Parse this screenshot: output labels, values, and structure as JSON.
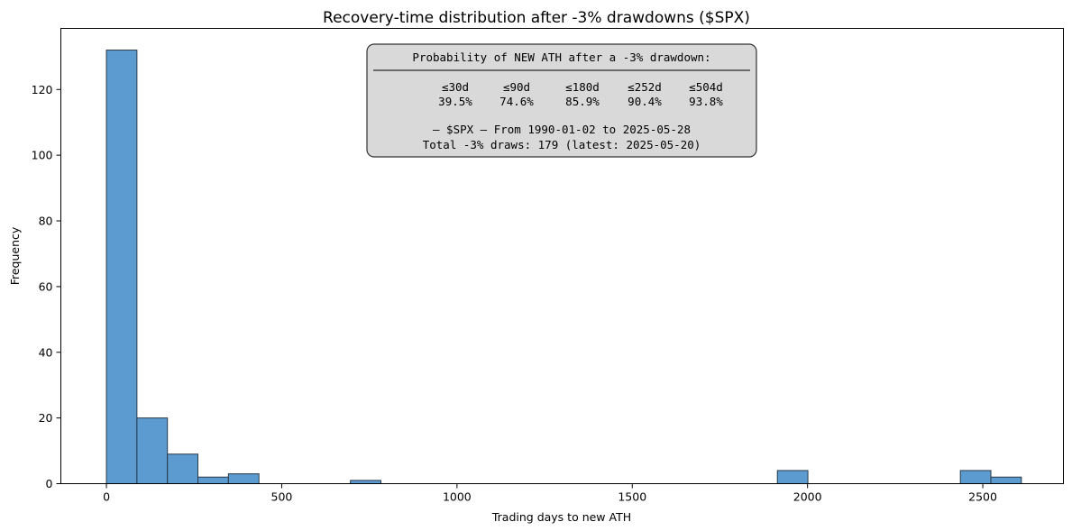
{
  "chart_data": {
    "type": "bar",
    "title": "Recovery-time distribution after -3% drawdowns ($SPX)",
    "xlabel": "Trading days to new ATH",
    "ylabel": "Frequency",
    "xlim": [
      -130,
      2730
    ],
    "ylim": [
      0,
      138.6
    ],
    "xticks": [
      0,
      500,
      1000,
      1500,
      2000,
      2500
    ],
    "yticks": [
      0,
      20,
      40,
      60,
      80,
      100,
      120
    ],
    "bar_color": "#5b9bd0",
    "edge_color": "#2a3a4a",
    "bins": [
      {
        "x0": 0,
        "x1": 87,
        "value": 132
      },
      {
        "x0": 87,
        "x1": 174,
        "value": 20
      },
      {
        "x0": 174,
        "x1": 261,
        "value": 9
      },
      {
        "x0": 261,
        "x1": 348,
        "value": 2
      },
      {
        "x0": 348,
        "x1": 435,
        "value": 3
      },
      {
        "x0": 696,
        "x1": 783,
        "value": 1
      },
      {
        "x0": 1914,
        "x1": 2001,
        "value": 4
      },
      {
        "x0": 2436,
        "x1": 2523,
        "value": 4
      },
      {
        "x0": 2523,
        "x1": 2610,
        "value": 2
      }
    ],
    "annotation": {
      "heading": "Probability of NEW ATH after a -3% drawdown:",
      "rule": "──────────────────────────────────────────────",
      "horizons": [
        "≤30d",
        "≤90d",
        "≤180d",
        "≤252d",
        "≤504d"
      ],
      "probabilities": [
        "39.5%",
        "74.6%",
        "85.9%",
        "90.4%",
        "93.8%"
      ],
      "range_line": "— $SPX — From 1990-01-02 to 2025-05-28",
      "total_line": "Total -3% draws: 179   (latest: 2025-05-20)"
    }
  }
}
